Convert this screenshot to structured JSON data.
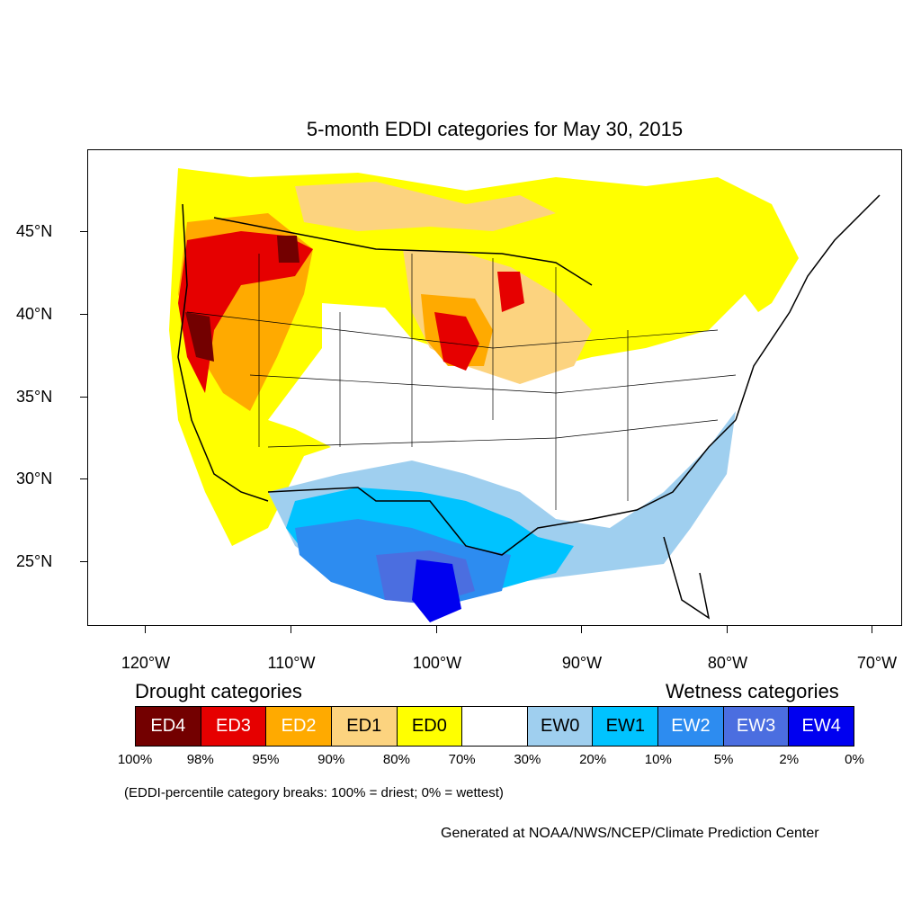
{
  "title": "5-month EDDI categories for May 30, 2015",
  "axes": {
    "lat_labels": [
      "45°N",
      "40°N",
      "35°N",
      "30°N",
      "25°N"
    ],
    "lon_labels": [
      "120°W",
      "110°W",
      "100°W",
      "90°W",
      "80°W",
      "70°W"
    ]
  },
  "legend": {
    "drought_heading": "Drought categories",
    "wetness_heading": "Wetness categories",
    "categories": [
      {
        "label": "ED4",
        "color": "#730000",
        "text_color": "#ffffff"
      },
      {
        "label": "ED3",
        "color": "#e60000",
        "text_color": "#ffffff"
      },
      {
        "label": "ED2",
        "color": "#ffaa00",
        "text_color": "#ffffff"
      },
      {
        "label": "ED1",
        "color": "#fcd37f",
        "text_color": "#000000"
      },
      {
        "label": "ED0",
        "color": "#ffff00",
        "text_color": "#000000"
      },
      {
        "label": "",
        "color": "#ffffff",
        "text_color": "#000000"
      },
      {
        "label": "EW0",
        "color": "#9fcfef",
        "text_color": "#000000"
      },
      {
        "label": "EW1",
        "color": "#00c3ff",
        "text_color": "#000000"
      },
      {
        "label": "EW2",
        "color": "#2d8cf0",
        "text_color": "#ffffff"
      },
      {
        "label": "EW3",
        "color": "#4b6ee0",
        "text_color": "#ffffff"
      },
      {
        "label": "EW4",
        "color": "#0000f0",
        "text_color": "#ffffff"
      }
    ],
    "breaks": [
      "100%",
      "98%",
      "95%",
      "90%",
      "80%",
      "70%",
      "30%",
      "20%",
      "10%",
      "5%",
      "2%",
      "0%"
    ]
  },
  "note": "(EDDI-percentile category breaks: 100% = driest; 0% = wettest)",
  "credit": "Generated at NOAA/NWS/NCEP/Climate Prediction Center"
}
